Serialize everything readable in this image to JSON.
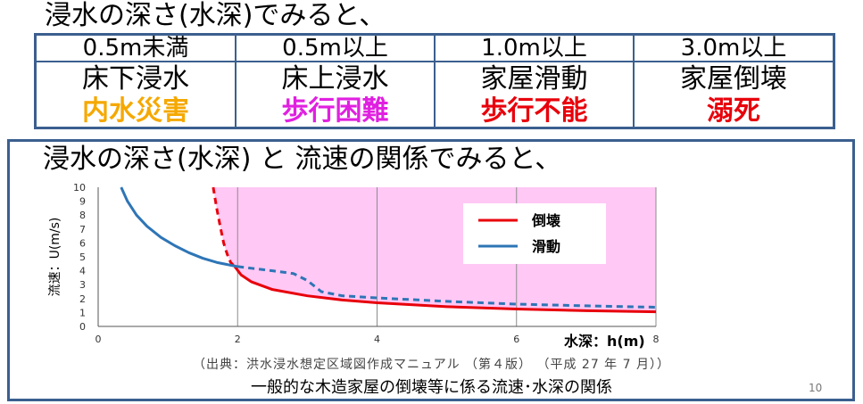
{
  "heading_depth": "浸水の深さ(水深)でみると、",
  "depth_table": {
    "depth_row": [
      "0.5m未満",
      "0.5m以上",
      "1.0m以上",
      "3.0m以上"
    ],
    "damage_row": [
      "床下浸水",
      "床上浸水",
      "家屋滑動",
      "家屋倒壊"
    ],
    "risk_row": [
      {
        "text": "内水災害",
        "color": "#f5a800"
      },
      {
        "text": "歩行困難",
        "color": "#e020e0"
      },
      {
        "text": "歩行不能",
        "color": "#e8000b"
      },
      {
        "text": "溺死",
        "color": "#e8000b"
      }
    ]
  },
  "heading_flow": "浸水の深さ(水深) と 流速の関係でみると、",
  "source_note": "（出典：洪水浸水想定区域図作成マニュアル （第４版） （平成 27 年 7 月））",
  "caption": "一般的な木造家屋の倒壊等に係る流速･水深の関係",
  "page_number": "10",
  "chart_data": {
    "type": "line",
    "title": "",
    "xlabel": "水深：h(m)",
    "ylabel": "流速：U(m/s)",
    "xlim": [
      0,
      8
    ],
    "ylim": [
      0,
      10
    ],
    "x_ticks": [
      0,
      2,
      4,
      6,
      8
    ],
    "y_ticks": [
      0,
      1,
      2,
      3,
      4,
      5,
      6,
      7,
      8,
      9,
      10
    ],
    "grid": "vertical",
    "shaded_region_color": "#ffc8f5",
    "legend_position": "top-right",
    "series": [
      {
        "name": "倒壊",
        "color": "#e8000b",
        "dashed_segments": [
          [
            [
              1.65,
              10
            ],
            [
              1.7,
              8.5
            ],
            [
              1.75,
              7.2
            ],
            [
              1.8,
              6.0
            ],
            [
              1.85,
              5.2
            ],
            [
              1.9,
              4.6
            ],
            [
              1.96,
              4.3
            ]
          ]
        ],
        "solid_segments": [
          [
            [
              1.96,
              4.3
            ],
            [
              2.05,
              3.7
            ],
            [
              2.2,
              3.2
            ],
            [
              2.5,
              2.65
            ],
            [
              3.0,
              2.2
            ],
            [
              3.5,
              1.9
            ],
            [
              4.0,
              1.7
            ],
            [
              5.0,
              1.42
            ],
            [
              6.0,
              1.25
            ],
            [
              7.0,
              1.13
            ],
            [
              8.0,
              1.05
            ]
          ]
        ]
      },
      {
        "name": "滑動",
        "color": "#2e75b6",
        "solid_segments": [
          [
            [
              0.33,
              10
            ],
            [
              0.42,
              9.0
            ],
            [
              0.55,
              8.0
            ],
            [
              0.7,
              7.2
            ],
            [
              0.9,
              6.4
            ],
            [
              1.1,
              5.8
            ],
            [
              1.3,
              5.3
            ],
            [
              1.5,
              4.9
            ],
            [
              1.7,
              4.6
            ],
            [
              1.9,
              4.4
            ],
            [
              2.0,
              4.3
            ]
          ]
        ],
        "dashed_segments": [
          [
            [
              2.0,
              4.3
            ],
            [
              2.5,
              4.0
            ],
            [
              2.8,
              3.8
            ],
            [
              3.0,
              3.3
            ],
            [
              3.2,
              2.5
            ],
            [
              3.5,
              2.2
            ],
            [
              4.0,
              2.05
            ],
            [
              5.0,
              1.8
            ],
            [
              6.0,
              1.6
            ],
            [
              7.0,
              1.48
            ],
            [
              8.0,
              1.38
            ]
          ]
        ]
      }
    ]
  }
}
